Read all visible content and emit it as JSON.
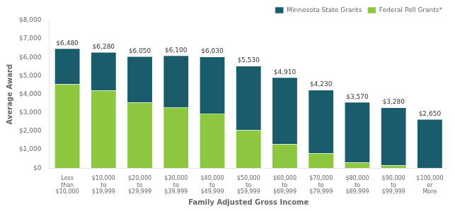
{
  "chart_data": {
    "type": "bar",
    "stacked": true,
    "categories": [
      "Less\nthan\n$10,000",
      "$10,000\nto\n$19,999",
      "$20,000\nto\n$29,999",
      "$30,000\nto\n$39,999",
      "$40,000\nto\n$49,999",
      "$50,000\nto\n$59,999",
      "$60,000\nto\n$69,999",
      "$70,000\nto\n$79,999",
      "$80,000\nto\n$89,999",
      "$90,000\nto\n$99,999",
      "$100,000\nor\nMore"
    ],
    "series": [
      {
        "name": "Federal Pell Grants*",
        "color": "#8DC63F",
        "values": [
          4550,
          4200,
          3550,
          3300,
          2950,
          2050,
          1300,
          800,
          300,
          150,
          0
        ]
      },
      {
        "name": "Minnesota State Grants",
        "color": "#1A5C6B",
        "values": [
          1930,
          2080,
          2500,
          2800,
          3080,
          3480,
          3610,
          3430,
          3270,
          3130,
          2650
        ]
      }
    ],
    "totals": [
      6480,
      6280,
      6050,
      6100,
      6030,
      5530,
      4910,
      4230,
      3570,
      3280,
      2650
    ],
    "total_labels": [
      "$6,480",
      "$6,280",
      "$6,050",
      "$6,100",
      "$6,030",
      "$5,530",
      "$4,910",
      "$4,230",
      "$3,570",
      "$3,280",
      "$2,650"
    ],
    "xlabel": "Family Adjusted Gross Income",
    "ylabel": "Average Award",
    "ylim": [
      0,
      8000
    ],
    "yticks": [
      {
        "value": 0,
        "label": "$0"
      },
      {
        "value": 1000,
        "label": "$1,000"
      },
      {
        "value": 2000,
        "label": "$2,000"
      },
      {
        "value": 3000,
        "label": "$3,000"
      },
      {
        "value": 4000,
        "label": "$4,000"
      },
      {
        "value": 5000,
        "label": "$5,000"
      },
      {
        "value": 6000,
        "label": "$6,000"
      },
      {
        "value": 7000,
        "label": "$7,000"
      },
      {
        "value": 8000,
        "label": "$8,000"
      }
    ],
    "grid": false,
    "legend": "upper right"
  }
}
